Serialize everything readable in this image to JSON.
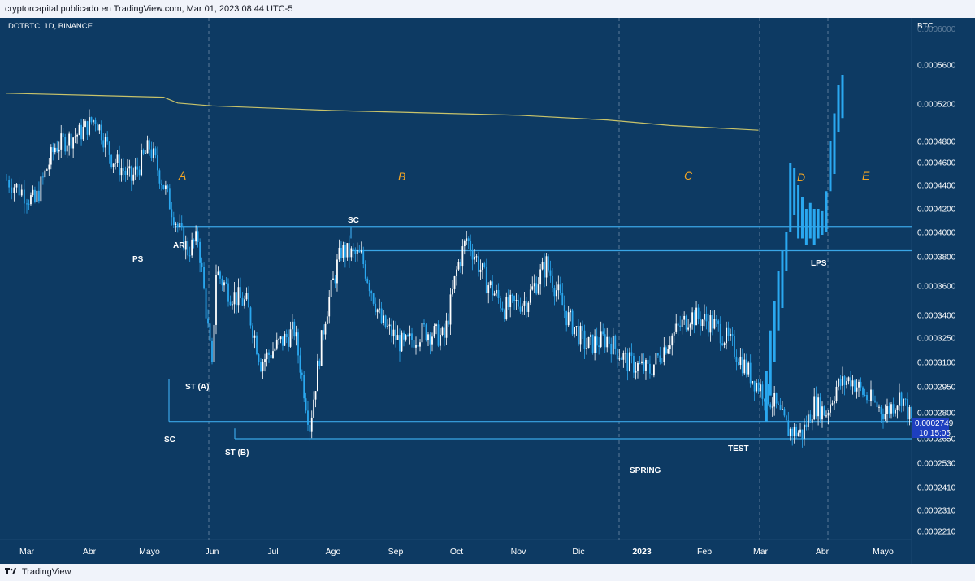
{
  "header": {
    "text": "cryptorcapital publicado en TradingView.com, Mar 01, 2023 08:44 UTC-5"
  },
  "footer": {
    "brand": "TradingView"
  },
  "chart_data": {
    "type": "candlestick",
    "symbol": "DOTBTC, 1D, BINANCE",
    "currency": "BTC",
    "y_ticks": [
      "0.0005600",
      "0.0005200",
      "0.0004800",
      "0.0004600",
      "0.0004400",
      "0.0004200",
      "0.0004000",
      "0.0003800",
      "0.0003600",
      "0.0003400",
      "0.0003250",
      "0.0003100",
      "0.0002950",
      "0.0002800",
      "0.0002650",
      "0.0002530",
      "0.0002410",
      "0.0002310",
      "0.0002210"
    ],
    "x_ticks": [
      "Mar",
      "Abr",
      "Mayo",
      "Jun",
      "Jul",
      "Ago",
      "Sep",
      "Oct",
      "Nov",
      "Dic",
      "2023",
      "Feb",
      "Mar",
      "Abr",
      "Mayo"
    ],
    "last_price": "0.0002749",
    "countdown": "10:15:05",
    "colors": {
      "background": "#0d3a63",
      "candle_up": "#ffffff",
      "candle_down": "#2aa8f0",
      "projection": "#2aa8f0",
      "level_line": "#3aa6e6",
      "moving_average": "#c8c36a",
      "phase_label": "#f5a623",
      "price_badge": "#1d3fbf"
    },
    "phases": [
      "A",
      "B",
      "C",
      "D",
      "E"
    ],
    "events": [
      "PS",
      "AR",
      "SC",
      "ST (A)",
      "ST (B)",
      "SC",
      "SPRING",
      "TEST",
      "LPS"
    ],
    "horizontal_levels": [
      0.000405,
      0.000385,
      0.000275,
      0.000265
    ],
    "moving_average": [
      {
        "date": "2022-02-21",
        "price": 0.000531
      },
      {
        "date": "2022-05-08",
        "price": 0.000527
      },
      {
        "date": "2022-05-15",
        "price": 0.000521
      },
      {
        "date": "2022-06-01",
        "price": 0.000518
      },
      {
        "date": "2022-08-01",
        "price": 0.000513
      },
      {
        "date": "2022-11-01",
        "price": 0.000508
      },
      {
        "date": "2022-12-15",
        "price": 0.000503
      },
      {
        "date": "2023-01-15",
        "price": 0.000497
      },
      {
        "date": "2023-02-28",
        "price": 0.000492
      }
    ],
    "price_path": [
      {
        "date": "2022-02-21",
        "price": 0.000445
      },
      {
        "date": "2022-03-05",
        "price": 0.000425
      },
      {
        "date": "2022-03-15",
        "price": 0.000475
      },
      {
        "date": "2022-03-28",
        "price": 0.00049
      },
      {
        "date": "2022-04-04",
        "price": 0.000505
      },
      {
        "date": "2022-04-12",
        "price": 0.000465
      },
      {
        "date": "2022-04-22",
        "price": 0.000445
      },
      {
        "date": "2022-05-01",
        "price": 0.000475
      },
      {
        "date": "2022-05-08",
        "price": 0.00044
      },
      {
        "date": "2022-05-15",
        "price": 0.000405
      },
      {
        "date": "2022-05-20",
        "price": 0.000385
      },
      {
        "date": "2022-05-25",
        "price": 0.000395
      },
      {
        "date": "2022-06-01",
        "price": 0.000305
      },
      {
        "date": "2022-06-03",
        "price": 0.00037
      },
      {
        "date": "2022-06-10",
        "price": 0.000355
      },
      {
        "date": "2022-06-18",
        "price": 0.000348
      },
      {
        "date": "2022-06-25",
        "price": 0.00031
      },
      {
        "date": "2022-07-03",
        "price": 0.00032
      },
      {
        "date": "2022-07-12",
        "price": 0.00033
      },
      {
        "date": "2022-07-20",
        "price": 0.000272
      },
      {
        "date": "2022-07-28",
        "price": 0.00034
      },
      {
        "date": "2022-08-05",
        "price": 0.000385
      },
      {
        "date": "2022-08-15",
        "price": 0.00038
      },
      {
        "date": "2022-08-25",
        "price": 0.000335
      },
      {
        "date": "2022-09-05",
        "price": 0.00032
      },
      {
        "date": "2022-09-15",
        "price": 0.00033
      },
      {
        "date": "2022-09-25",
        "price": 0.000325
      },
      {
        "date": "2022-10-01",
        "price": 0.00037
      },
      {
        "date": "2022-10-06",
        "price": 0.000395
      },
      {
        "date": "2022-10-15",
        "price": 0.000365
      },
      {
        "date": "2022-10-25",
        "price": 0.000345
      },
      {
        "date": "2022-11-05",
        "price": 0.00035
      },
      {
        "date": "2022-11-15",
        "price": 0.000375
      },
      {
        "date": "2022-11-25",
        "price": 0.00034
      },
      {
        "date": "2022-12-05",
        "price": 0.00032
      },
      {
        "date": "2022-12-15",
        "price": 0.000325
      },
      {
        "date": "2022-12-25",
        "price": 0.00031
      },
      {
        "date": "2023-01-05",
        "price": 0.000305
      },
      {
        "date": "2023-01-15",
        "price": 0.000325
      },
      {
        "date": "2023-01-25",
        "price": 0.00034
      },
      {
        "date": "2023-02-05",
        "price": 0.000335
      },
      {
        "date": "2023-02-15",
        "price": 0.00032
      },
      {
        "date": "2023-02-25",
        "price": 0.0003
      },
      {
        "date": "2023-03-08",
        "price": 0.000285
      },
      {
        "date": "2023-03-15",
        "price": 0.00027
      },
      {
        "date": "2023-03-22",
        "price": 0.000268
      },
      {
        "date": "2023-03-28",
        "price": 0.000285
      },
      {
        "date": "2023-04-03",
        "price": 0.00028
      },
      {
        "date": "2023-04-08",
        "price": 0.000295
      },
      {
        "date": "2023-04-15",
        "price": 0.0003
      },
      {
        "date": "2023-04-22",
        "price": 0.00029
      },
      {
        "date": "2023-05-02",
        "price": 0.00028
      },
      {
        "date": "2023-05-10",
        "price": 0.00029
      },
      {
        "date": "2023-05-15",
        "price": 0.000275
      }
    ],
    "projection_bars": [
      {
        "date": "2023-03-04",
        "low": 0.000275,
        "high": 0.000305
      },
      {
        "date": "2023-03-06",
        "low": 0.00029,
        "high": 0.00033
      },
      {
        "date": "2023-03-08",
        "low": 0.00031,
        "high": 0.00035
      },
      {
        "date": "2023-03-10",
        "low": 0.00033,
        "high": 0.00037
      },
      {
        "date": "2023-03-12",
        "low": 0.000345,
        "high": 0.000385
      },
      {
        "date": "2023-03-14",
        "low": 0.00037,
        "high": 0.0004
      },
      {
        "date": "2023-03-16",
        "low": 0.0004,
        "high": 0.00046
      },
      {
        "date": "2023-03-18",
        "low": 0.000415,
        "high": 0.000455
      },
      {
        "date": "2023-03-20",
        "low": 0.000395,
        "high": 0.00044
      },
      {
        "date": "2023-03-22",
        "low": 0.000395,
        "high": 0.00043
      },
      {
        "date": "2023-03-24",
        "low": 0.00039,
        "high": 0.00042
      },
      {
        "date": "2023-03-26",
        "low": 0.000395,
        "high": 0.000425
      },
      {
        "date": "2023-03-28",
        "low": 0.00039,
        "high": 0.00042
      },
      {
        "date": "2023-03-30",
        "low": 0.000395,
        "high": 0.00042
      },
      {
        "date": "2023-04-01",
        "low": 0.000398,
        "high": 0.000418
      },
      {
        "date": "2023-04-03",
        "low": 0.0004,
        "high": 0.000435
      },
      {
        "date": "2023-04-05",
        "low": 0.000435,
        "high": 0.00048
      },
      {
        "date": "2023-04-07",
        "low": 0.00045,
        "high": 0.00051
      },
      {
        "date": "2023-04-09",
        "low": 0.00049,
        "high": 0.00054
      },
      {
        "date": "2023-04-11",
        "low": 0.000505,
        "high": 0.00055
      }
    ]
  }
}
